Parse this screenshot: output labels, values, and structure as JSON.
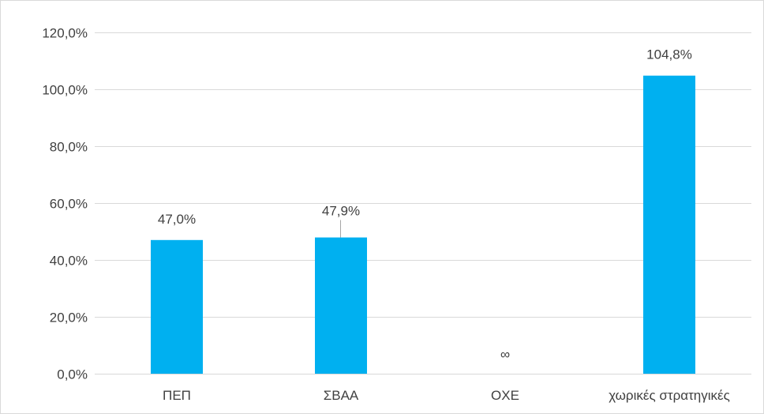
{
  "chart_data": {
    "type": "bar",
    "categories": [
      "ΠΕΠ",
      "ΣΒΑΑ",
      "ΟΧΕ",
      "χωρικές στρατηγικές"
    ],
    "values": [
      47.0,
      47.9,
      0,
      104.8
    ],
    "data_labels": [
      "47,0%",
      "47,9%",
      "∞",
      "104,8%"
    ],
    "y_ticks": [
      "0,0%",
      "20,0%",
      "40,0%",
      "60,0%",
      "80,0%",
      "100,0%",
      "120,0%"
    ],
    "y_tick_values": [
      0,
      20,
      40,
      60,
      80,
      100,
      120
    ],
    "ylim": [
      0,
      120
    ],
    "title": "",
    "xlabel": "",
    "ylabel": "",
    "grid": true,
    "legend": "none",
    "bar_color": "#00b0f0",
    "grid_color": "#d9d9d9",
    "text_color": "#404040"
  }
}
